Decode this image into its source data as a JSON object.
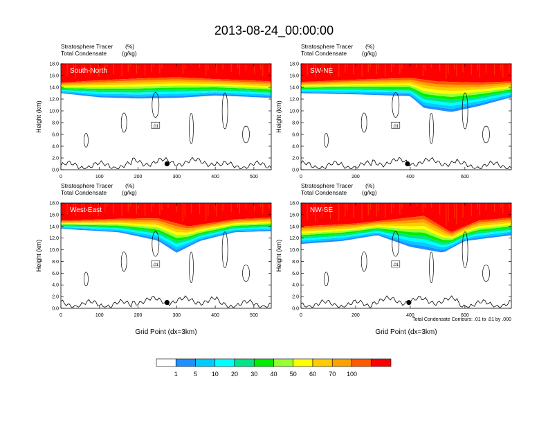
{
  "title": "2013-08-24_00:00:00",
  "colors": {
    "levels": [
      "#ffffff",
      "#1e90ff",
      "#00ccff",
      "#00ffff",
      "#00e68a",
      "#00ee00",
      "#99ff33",
      "#ffff00",
      "#ffcc00",
      "#ffa000",
      "#ff5a00",
      "#ff0000"
    ]
  },
  "colorbar": {
    "labels": [
      "1",
      "5",
      "10",
      "20",
      "30",
      "40",
      "50",
      "60",
      "70",
      "100"
    ]
  },
  "footnote": "Total Condensate Contours: .01 to .01 by .000",
  "chart_data": [
    {
      "type": "heatmap",
      "label_left_1": "Stratosphere Tracer",
      "label_right_1": "(%)",
      "label_left_2": "Total Condensate",
      "label_right_2": "(g/kg)",
      "panel_label": "South-North",
      "ylabel": "Height (km)",
      "xlabel": "",
      "ylim": [
        0,
        18
      ],
      "xlim": [
        0,
        545
      ],
      "yticks": [
        "0.0",
        "2.0",
        "4.0",
        "6.0",
        "8.0",
        "10.0",
        "12.0",
        "14.0",
        "16.0",
        "18.0"
      ],
      "xticks": [
        0,
        100,
        200,
        300,
        400,
        500
      ],
      "xticklabels": [
        "0",
        "100",
        "200",
        "300",
        "400",
        "500"
      ],
      "tropopause_km": [
        [
          0,
          13.0
        ],
        [
          100,
          12.3
        ],
        [
          200,
          12.1
        ],
        [
          300,
          12.2
        ],
        [
          400,
          12.6
        ],
        [
          480,
          12.4
        ],
        [
          545,
          12.2
        ]
      ],
      "stratosphere_base_km": [
        [
          0,
          14.8
        ],
        [
          100,
          15.2
        ],
        [
          200,
          15.5
        ],
        [
          300,
          15.7
        ],
        [
          400,
          15.4
        ],
        [
          480,
          15.2
        ],
        [
          545,
          15.0
        ]
      ],
      "marker_x": 275,
      "contour_label": ".01"
    },
    {
      "type": "heatmap",
      "label_left_1": "Stratosphere Tracer",
      "label_right_1": "(%)",
      "label_left_2": "Total Condensate",
      "label_right_2": "(g/kg)",
      "panel_label": "SW-NE",
      "ylabel": "Height (km)",
      "xlabel": "",
      "ylim": [
        0,
        18
      ],
      "xlim": [
        0,
        770
      ],
      "yticks": [
        "0.0",
        "2.0",
        "4.0",
        "6.0",
        "8.0",
        "10.0",
        "12.0",
        "14.0",
        "16.0",
        "18.0"
      ],
      "xticks": [
        0,
        200,
        400,
        600
      ],
      "xticklabels": [
        "0",
        "200",
        "400",
        "600"
      ],
      "tropopause_km": [
        [
          0,
          13.0
        ],
        [
          200,
          12.8
        ],
        [
          400,
          12.5
        ],
        [
          450,
          10.5
        ],
        [
          550,
          9.8
        ],
        [
          650,
          10.8
        ],
        [
          770,
          12.3
        ]
      ],
      "stratosphere_base_km": [
        [
          0,
          14.9
        ],
        [
          200,
          15.3
        ],
        [
          400,
          15.6
        ],
        [
          500,
          15.0
        ],
        [
          650,
          14.8
        ],
        [
          770,
          15.0
        ]
      ],
      "marker_x": 390,
      "contour_label": ".01"
    },
    {
      "type": "heatmap",
      "label_left_1": "Stratosphere Tracer",
      "label_right_1": "(%)",
      "label_left_2": "Total Condensate",
      "label_right_2": "(g/kg)",
      "panel_label": "West-East",
      "ylabel": "Height (km)",
      "xlabel": "Grid Point (dx=3km)",
      "ylim": [
        0,
        18
      ],
      "xlim": [
        0,
        545
      ],
      "yticks": [
        "0.0",
        "2.0",
        "4.0",
        "6.0",
        "8.0",
        "10.0",
        "12.0",
        "14.0",
        "16.0",
        "18.0"
      ],
      "xticks": [
        0,
        100,
        200,
        300,
        400,
        500
      ],
      "xticklabels": [
        "0",
        "100",
        "200",
        "300",
        "400",
        "500"
      ],
      "tropopause_km": [
        [
          0,
          13.6
        ],
        [
          150,
          13.0
        ],
        [
          250,
          11.6
        ],
        [
          300,
          9.5
        ],
        [
          360,
          11.5
        ],
        [
          450,
          13.0
        ],
        [
          545,
          13.2
        ]
      ],
      "stratosphere_base_km": [
        [
          0,
          15.0
        ],
        [
          150,
          15.3
        ],
        [
          250,
          15.4
        ],
        [
          330,
          14.0
        ],
        [
          450,
          15.2
        ],
        [
          545,
          15.5
        ]
      ],
      "marker_x": 275,
      "contour_label": ".01"
    },
    {
      "type": "heatmap",
      "label_left_1": "Stratosphere Tracer",
      "label_right_1": "(%)",
      "label_left_2": "Total Condensate",
      "label_right_2": "(g/kg)",
      "panel_label": "NW-SE",
      "ylabel": "Height (km)",
      "xlabel": "Grid Point (dx=3km)",
      "ylim": [
        0,
        18
      ],
      "xlim": [
        0,
        770
      ],
      "yticks": [
        "0.0",
        "2.0",
        "4.0",
        "6.0",
        "8.0",
        "10.0",
        "12.0",
        "14.0",
        "16.0",
        "18.0"
      ],
      "xticks": [
        0,
        200,
        400,
        600
      ],
      "xticklabels": [
        "0",
        "200",
        "400",
        "600"
      ],
      "tropopause_km": [
        [
          0,
          11.0
        ],
        [
          150,
          11.5
        ],
        [
          280,
          12.5
        ],
        [
          400,
          10.5
        ],
        [
          520,
          9.5
        ],
        [
          600,
          11.5
        ],
        [
          770,
          12.5
        ]
      ],
      "stratosphere_base_km": [
        [
          0,
          14.0
        ],
        [
          200,
          14.5
        ],
        [
          300,
          15.0
        ],
        [
          450,
          15.8
        ],
        [
          550,
          13.0
        ],
        [
          650,
          15.0
        ],
        [
          770,
          15.5
        ]
      ],
      "marker_x": 395,
      "contour_label": ".01"
    }
  ]
}
